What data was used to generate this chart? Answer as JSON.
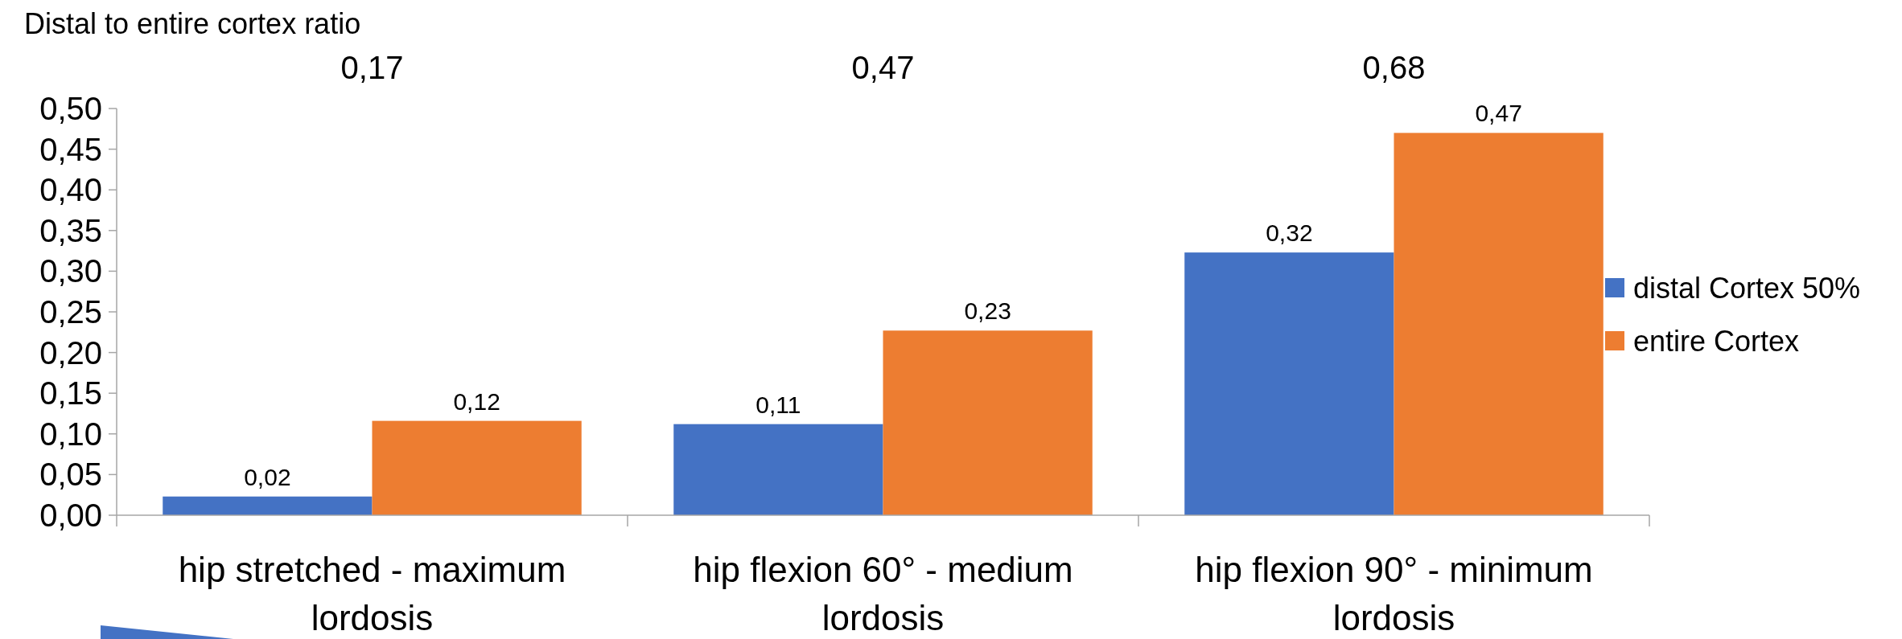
{
  "chart_data": {
    "type": "bar",
    "title": "Distal to entire cortex ratio",
    "categories": [
      "hip stretched - maximum lordosis",
      "hip flexion 60° - medium lordosis",
      "hip flexion 90° - minimum lordosis"
    ],
    "series": [
      {
        "name": "distal Cortex 50%",
        "color": "#4472c4",
        "values": [
          0.023,
          0.112,
          0.323
        ],
        "value_labels": [
          "0,02",
          "0,11",
          "0,32"
        ]
      },
      {
        "name": "entire Cortex",
        "color": "#ed7d31",
        "values": [
          0.116,
          0.227,
          0.47
        ],
        "value_labels": [
          "0,12",
          "0,23",
          "0,47"
        ]
      }
    ],
    "annotations": [
      "0,17",
      "0,47",
      "0,68"
    ],
    "ylim": [
      0,
      0.5
    ],
    "yticks": [
      {
        "value": 0,
        "label": "0,00"
      },
      {
        "value": 0.05,
        "label": "0,05"
      },
      {
        "value": 0.1,
        "label": "0,10"
      },
      {
        "value": 0.15,
        "label": "0,15"
      },
      {
        "value": 0.2,
        "label": "0,20"
      },
      {
        "value": 0.25,
        "label": "0,25"
      },
      {
        "value": 0.3,
        "label": "0,30"
      },
      {
        "value": 0.35,
        "label": "0,35"
      },
      {
        "value": 0.4,
        "label": "0,40"
      },
      {
        "value": 0.45,
        "label": "0,45"
      },
      {
        "value": 0.5,
        "label": "0,50"
      }
    ],
    "legend": "right",
    "grid": false
  }
}
